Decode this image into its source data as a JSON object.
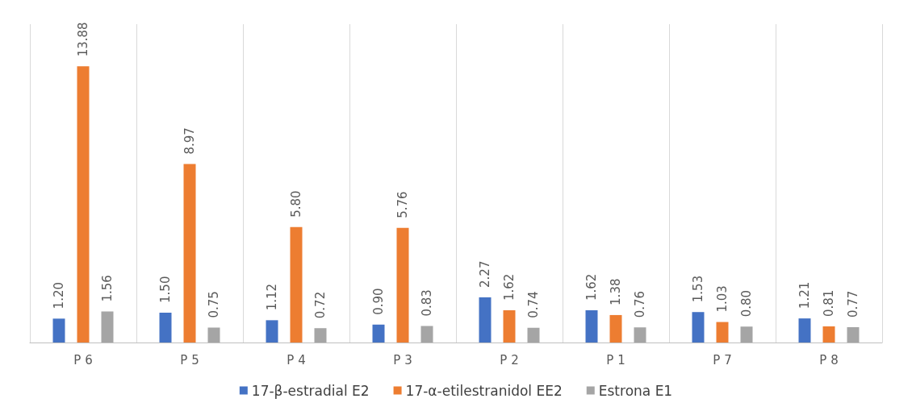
{
  "chart_data": {
    "type": "bar",
    "categories": [
      "P 6",
      "P 5",
      "P 4",
      "P 3",
      "P 2",
      "P 1",
      "P 7",
      "P 8"
    ],
    "series": [
      {
        "name": "17-β-estradial E2",
        "color": "#4472c4",
        "values": [
          1.2,
          1.5,
          1.12,
          0.9,
          2.27,
          1.62,
          1.53,
          1.21
        ],
        "value_labels": [
          "1.20",
          "1.50",
          "1.12",
          "0.90",
          "2.27",
          "1.62",
          "1.53",
          "1.21"
        ]
      },
      {
        "name": "17-α-etilestranidol EE2",
        "color": "#ed7d31",
        "values": [
          13.88,
          8.97,
          5.8,
          5.76,
          1.62,
          1.38,
          1.03,
          0.81
        ],
        "value_labels": [
          "13.88",
          "8.97",
          "5.80",
          "5.76",
          "1.62",
          "1.38",
          "1.03",
          "0.81"
        ]
      },
      {
        "name": "Estrona E1",
        "color": "#a5a5a5",
        "values": [
          1.56,
          0.75,
          0.72,
          0.83,
          0.74,
          0.76,
          0.8,
          0.77
        ],
        "value_labels": [
          "1.56",
          "0.75",
          "0.72",
          "0.83",
          "0.74",
          "0.76",
          "0.80",
          "0.77"
        ]
      }
    ],
    "ylim": [
      0,
      16
    ],
    "grid": "x",
    "legend": "bottom",
    "tick_labels": "x"
  }
}
